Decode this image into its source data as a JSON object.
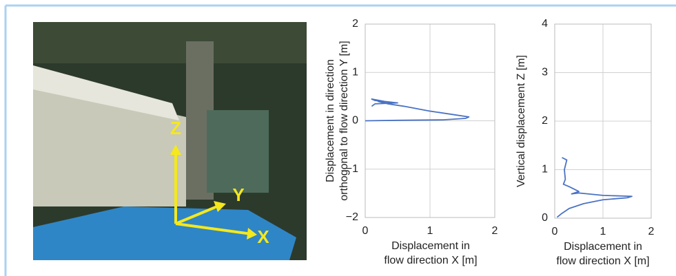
{
  "photo": {
    "axis_labels": [
      "Z",
      "Y",
      "X"
    ]
  },
  "chart_data": [
    {
      "type": "line",
      "xlabel": [
        "Displacement in",
        "flow direction X [m]"
      ],
      "ylabel": [
        "Displacement in direction",
        "orthogonal to flow direction Y [m]"
      ],
      "x": [
        0,
        0.5,
        1.2,
        1.55,
        1.6,
        1.4,
        1.0,
        0.6,
        0.35,
        0.2,
        0.4,
        0.15,
        0.1,
        0.3,
        0.5,
        0.15,
        0.1
      ],
      "series": [
        {
          "color": "#4a72c4",
          "values": [
            0,
            0.01,
            0.02,
            0.05,
            0.08,
            0.12,
            0.2,
            0.3,
            0.35,
            0.4,
            0.38,
            0.42,
            0.45,
            0.4,
            0.37,
            0.35,
            0.3
          ]
        }
      ],
      "xlim": [
        0,
        2
      ],
      "ylim": [
        -2,
        2
      ],
      "xticks": [
        0,
        1,
        2
      ],
      "yticks": [
        {
          "value": -2,
          "label": "−2"
        },
        {
          "value": -1,
          "label": "−1"
        },
        0,
        1,
        2
      ],
      "grid": true
    },
    {
      "type": "line",
      "xlabel": [
        "Displacement in",
        "flow direction X [m]"
      ],
      "ylabel": [
        "Vertical displacement Z [m]"
      ],
      "x": [
        0.15,
        0.25,
        0.2,
        0.22,
        0.18,
        0.3,
        0.5,
        0.35,
        0.5,
        1.0,
        1.6,
        1.5,
        1.0,
        0.6,
        0.3,
        0.15,
        0.05
      ],
      "series": [
        {
          "color": "#4a72c4",
          "values": [
            1.25,
            1.2,
            1.0,
            0.8,
            0.7,
            0.65,
            0.55,
            0.5,
            0.52,
            0.47,
            0.45,
            0.42,
            0.38,
            0.3,
            0.2,
            0.1,
            0.02
          ]
        }
      ],
      "xlim": [
        0,
        2
      ],
      "ylim": [
        0,
        4
      ],
      "xticks": [
        0,
        1,
        2
      ],
      "yticks": [
        0,
        1,
        2,
        3,
        4
      ],
      "grid": true
    }
  ]
}
